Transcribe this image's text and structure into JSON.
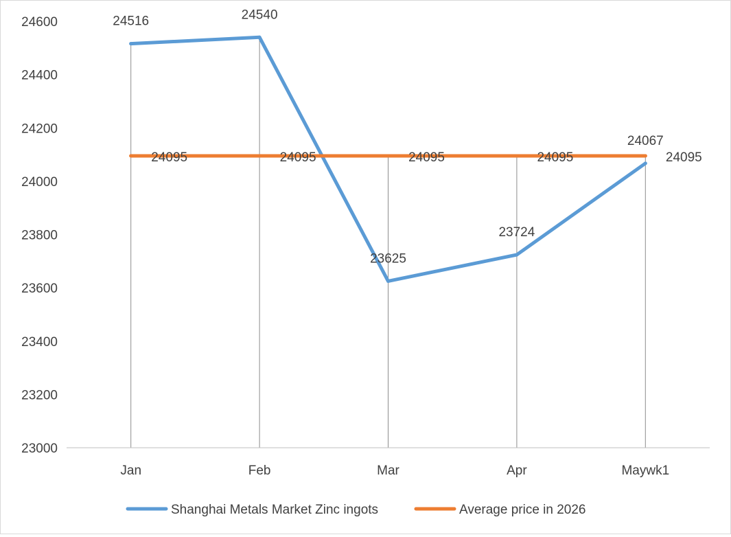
{
  "chart_data": {
    "type": "line",
    "categories": [
      "Jan",
      "Feb",
      "Mar",
      "Apr",
      "Maywk1"
    ],
    "series": [
      {
        "name": "Shanghai Metals Market Zinc ingots",
        "values": [
          24516,
          24540,
          23625,
          23724,
          24067
        ],
        "color": "#5b9bd5"
      },
      {
        "name": "Average price in 2026",
        "values": [
          24095,
          24095,
          24095,
          24095,
          24095
        ],
        "color": "#ed7d31"
      }
    ],
    "ylim": [
      23000,
      24600
    ],
    "yticks": [
      23000,
      23200,
      23400,
      23600,
      23800,
      24000,
      24200,
      24400,
      24600
    ],
    "data_labels": true,
    "drop_lines": true,
    "grid": false,
    "legend": "bottom"
  }
}
